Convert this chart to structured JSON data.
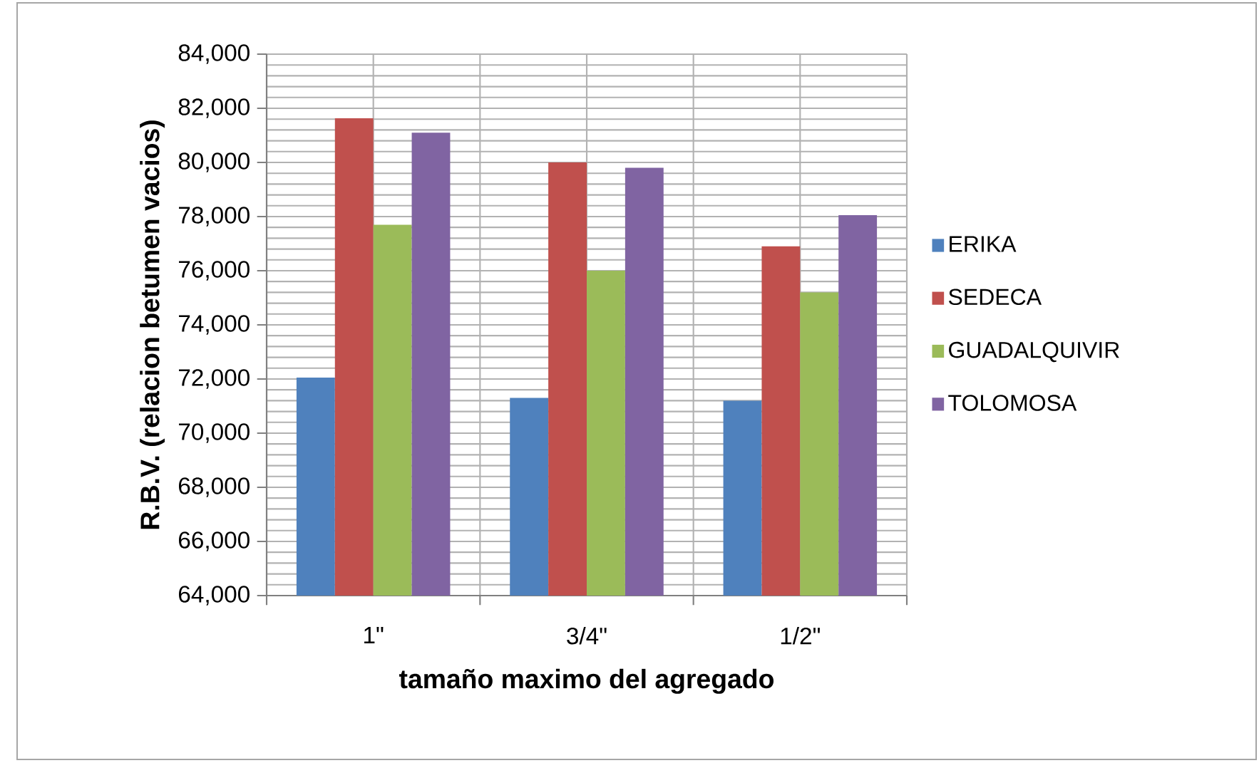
{
  "chart_data": {
    "type": "bar",
    "xlabel": "tamaño maximo del agregado",
    "ylabel": "R.B.V. (relacion betumen vacios)",
    "categories": [
      "1\"",
      "3/4\"",
      "1/2\""
    ],
    "series": [
      {
        "name": "ERIKA",
        "color": "#4f81bd",
        "values": [
          72050,
          71300,
          71200
        ]
      },
      {
        "name": "SEDECA",
        "color": "#c0504d",
        "values": [
          81630,
          80000,
          76900
        ]
      },
      {
        "name": "GUADALQUIVIR",
        "color": "#9bbb59",
        "values": [
          77700,
          76000,
          75200
        ]
      },
      {
        "name": "TOLOMOSA",
        "color": "#8064a2",
        "values": [
          81100,
          79800,
          78050
        ]
      }
    ],
    "ylim": [
      64000,
      84000
    ],
    "yticks": [
      {
        "value": 64000,
        "label": "64,000"
      },
      {
        "value": 66000,
        "label": "66,000"
      },
      {
        "value": 68000,
        "label": "68,000"
      },
      {
        "value": 70000,
        "label": "70,000"
      },
      {
        "value": 72000,
        "label": "72,000"
      },
      {
        "value": 74000,
        "label": "74,000"
      },
      {
        "value": 76000,
        "label": "76,000"
      },
      {
        "value": 78000,
        "label": "78,000"
      },
      {
        "value": 80000,
        "label": "80,000"
      },
      {
        "value": 82000,
        "label": "82,000"
      },
      {
        "value": 84000,
        "label": "84,000"
      }
    ],
    "grid": true,
    "legend": "right"
  }
}
